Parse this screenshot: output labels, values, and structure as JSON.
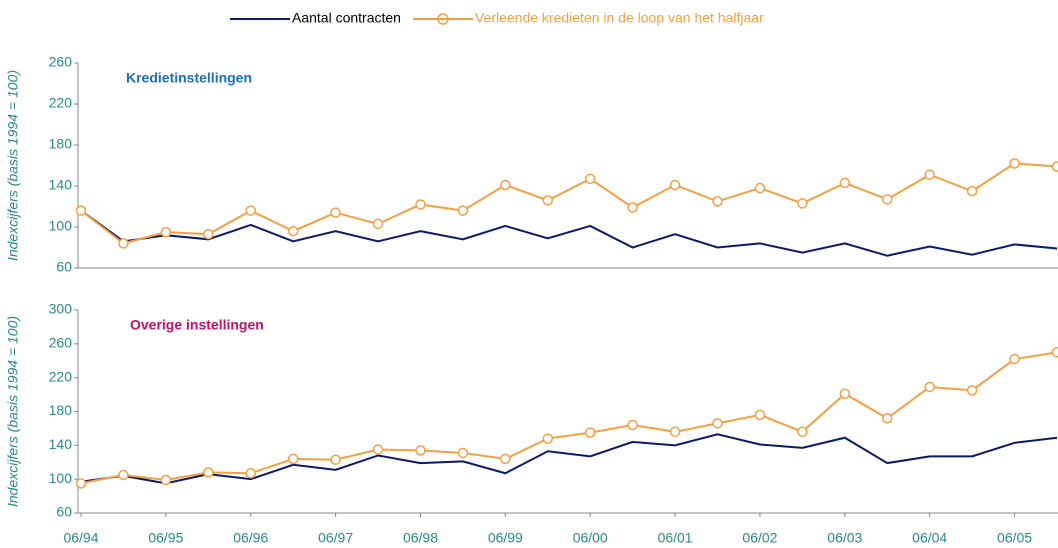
{
  "chart_data": [
    {
      "type": "line",
      "ylabel": "Indexcijfers (basis 1994 = 100)",
      "annotation": "Kredietinstellingen",
      "annotation_color": "#1a6fc4",
      "ylim": [
        60,
        260
      ],
      "yticks": [
        60,
        100,
        140,
        180,
        220,
        260
      ],
      "series": [
        {
          "name": "Aantal contracten",
          "color": "#0d1a6b",
          "marker": false,
          "values": [
            116,
            86,
            92,
            88,
            102,
            86,
            96,
            86,
            96,
            88,
            101,
            89,
            101,
            80,
            93,
            80,
            84,
            75,
            84,
            72,
            81,
            73,
            83,
            79
          ]
        },
        {
          "name": "Verleende kredieten in de loop van het halfjaar",
          "color": "#f5a040",
          "marker": true,
          "values": [
            116,
            84,
            95,
            93,
            116,
            96,
            114,
            103,
            122,
            116,
            141,
            126,
            147,
            119,
            141,
            125,
            138,
            123,
            143,
            127,
            151,
            135,
            162,
            159
          ]
        }
      ]
    },
    {
      "type": "line",
      "ylabel": "Indexcijfers (basis 1994 = 100)",
      "annotation": "Overige instellingen",
      "annotation_color": "#c0106b",
      "categories": [
        "06/94",
        null,
        "06/95",
        null,
        "06/96",
        null,
        "06/97",
        null,
        "06/98",
        null,
        "06/99",
        null,
        "06/00",
        null,
        "06/01",
        null,
        "06/02",
        null,
        "06/03",
        null,
        "06/04",
        null,
        "06/05",
        null
      ],
      "ylim": [
        60,
        300
      ],
      "yticks": [
        60,
        100,
        140,
        180,
        220,
        260,
        300
      ],
      "series": [
        {
          "name": "Aantal contracten",
          "color": "#0d1a6b",
          "marker": false,
          "values": [
            97,
            104,
            95,
            106,
            100,
            117,
            111,
            128,
            119,
            121,
            107,
            133,
            127,
            144,
            140,
            153,
            141,
            137,
            149,
            119,
            127,
            127,
            143,
            149
          ]
        },
        {
          "name": "Verleende kredieten in de loop van het halfjaar",
          "color": "#f5a040",
          "marker": true,
          "values": [
            95,
            105,
            99,
            108,
            107,
            124,
            123,
            135,
            134,
            131,
            124,
            148,
            155,
            164,
            156,
            166,
            176,
            156,
            201,
            172,
            209,
            205,
            242,
            250
          ]
        }
      ]
    }
  ]
}
